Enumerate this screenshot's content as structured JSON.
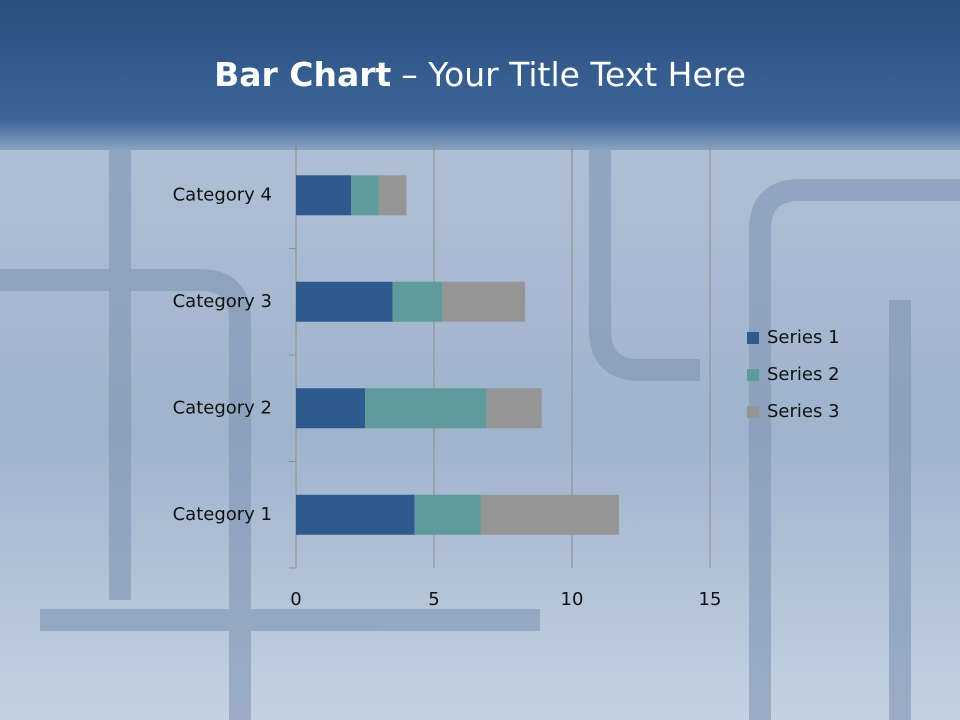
{
  "chart_data": {
    "type": "stacked-bar-horizontal",
    "title": [
      "Bar Chart",
      "– Your Title Text Here"
    ],
    "categories": [
      "Category 1",
      "Category 2",
      "Category 3",
      "Category 4"
    ],
    "series": [
      {
        "name": "Series 1",
        "color": "#2f5a8d",
        "values": [
          4.3,
          2.5,
          3.5,
          2.0
        ]
      },
      {
        "name": "Series 2",
        "color": "#5f9b9a",
        "values": [
          2.4,
          4.4,
          1.8,
          1.0
        ]
      },
      {
        "name": "Series 3",
        "color": "#959595",
        "values": [
          5.0,
          2.0,
          3.0,
          1.0
        ]
      }
    ],
    "xlim": [
      0,
      15
    ],
    "xticks": [
      0,
      5,
      10,
      15
    ],
    "grid": true,
    "legend": "right"
  }
}
